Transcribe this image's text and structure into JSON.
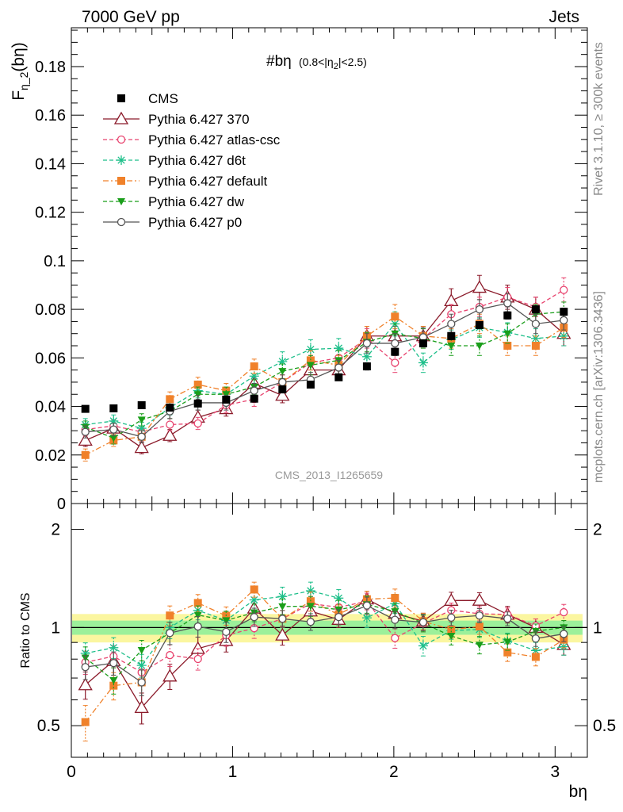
{
  "header": {
    "left": "7000 GeV pp",
    "right": "Jets",
    "plot_title": "#bη",
    "plot_title_cut": "(0.8<|η",
    "plot_title_cut_sub": "2",
    "plot_title_cut_end": "|<2.5)",
    "watermark": "CMS_2013_I1265659",
    "side_rivet": "Rivet 3.1.10, ≥ 300k events",
    "side_mcplots": "mcplots.cern.ch [arXiv:1306.3436]"
  },
  "axes": {
    "y_main_label": "F",
    "y_main_sub": "η_2",
    "y_main_paren": "(bη)",
    "y_ratio_label": "Ratio to CMS",
    "x_label": "bη",
    "y_main_ticks": [
      "0",
      "0.02",
      "0.04",
      "0.06",
      "0.08",
      "0.1",
      "0.12",
      "0.14",
      "0.16",
      "0.18"
    ],
    "y_ratio_ticks": [
      "0.5",
      "1",
      "2"
    ],
    "x_ticks": [
      "0",
      "1",
      "2",
      "3"
    ]
  },
  "chart_data": [
    {
      "type": "scatter",
      "panel": "main",
      "xlabel": "bη",
      "ylabel": "F_η_2(bη)",
      "xlim": [
        0,
        3.2
      ],
      "ylim": [
        0,
        0.196
      ],
      "grid": false,
      "legend_position": "top-left",
      "x": [
        0.087,
        0.262,
        0.436,
        0.611,
        0.785,
        0.96,
        1.134,
        1.309,
        1.484,
        1.658,
        1.833,
        2.007,
        2.182,
        2.356,
        2.531,
        2.705,
        2.88,
        3.054
      ],
      "series": [
        {
          "name": "CMS",
          "color": "#000000",
          "marker": "square",
          "line": "none",
          "values": [
            0.039,
            0.0392,
            0.0405,
            0.0395,
            0.0412,
            0.0428,
            0.0432,
            0.047,
            0.049,
            0.052,
            0.0565,
            0.0625,
            0.066,
            0.069,
            0.0735,
            0.0775,
            0.08,
            0.079
          ],
          "errors": [
            0.001,
            0.001,
            0.001,
            0.001,
            0.001,
            0.001,
            0.001,
            0.001,
            0.001,
            0.001,
            0.0015,
            0.0015,
            0.0015,
            0.0015,
            0.0015,
            0.0015,
            0.0015,
            0.0015
          ]
        },
        {
          "name": "Pythia 6.427 370",
          "color": "#8b1a2a",
          "marker": "open-triangle",
          "line": "solid",
          "values": [
            0.026,
            0.031,
            0.023,
            0.028,
            0.0355,
            0.039,
            0.0495,
            0.0445,
            0.055,
            0.055,
            0.069,
            0.069,
            0.069,
            0.0835,
            0.089,
            0.085,
            0.08,
            0.07
          ],
          "errors": [
            0.0025,
            0.003,
            0.0025,
            0.0025,
            0.003,
            0.003,
            0.003,
            0.003,
            0.003,
            0.003,
            0.004,
            0.004,
            0.004,
            0.005,
            0.005,
            0.005,
            0.005,
            0.005
          ]
        },
        {
          "name": "Pythia 6.427 atlas-csc",
          "color": "#e8446f",
          "marker": "open-circle",
          "line": "dashed",
          "values": [
            0.0305,
            0.032,
            0.0295,
            0.0325,
            0.033,
            0.0405,
            0.043,
            0.05,
            0.058,
            0.06,
            0.068,
            0.058,
            0.068,
            0.078,
            0.081,
            0.085,
            0.081,
            0.088
          ],
          "errors": [
            0.0025,
            0.0025,
            0.0025,
            0.0025,
            0.0025,
            0.003,
            0.003,
            0.003,
            0.003,
            0.003,
            0.004,
            0.004,
            0.004,
            0.004,
            0.004,
            0.004,
            0.004,
            0.005
          ]
        },
        {
          "name": "Pythia 6.427 d6t",
          "color": "#1dbf8a",
          "marker": "star",
          "line": "dashed",
          "values": [
            0.0325,
            0.034,
            0.031,
            0.0395,
            0.0465,
            0.045,
            0.0525,
            0.0585,
            0.0635,
            0.064,
            0.0605,
            0.074,
            0.058,
            0.0675,
            0.0725,
            0.0705,
            0.068,
            0.069
          ],
          "errors": [
            0.0025,
            0.0025,
            0.0025,
            0.003,
            0.003,
            0.003,
            0.003,
            0.004,
            0.004,
            0.004,
            0.004,
            0.005,
            0.004,
            0.004,
            0.004,
            0.004,
            0.004,
            0.004
          ]
        },
        {
          "name": "Pythia 6.427 default",
          "color": "#f0812a",
          "marker": "square",
          "line": "dashdot",
          "values": [
            0.02,
            0.026,
            0.0275,
            0.043,
            0.049,
            0.0465,
            0.0565,
            0.05,
            0.059,
            0.057,
            0.069,
            0.077,
            0.069,
            0.068,
            0.074,
            0.065,
            0.065,
            0.0725
          ],
          "errors": [
            0.0025,
            0.0025,
            0.0025,
            0.003,
            0.003,
            0.003,
            0.003,
            0.003,
            0.004,
            0.004,
            0.004,
            0.005,
            0.004,
            0.004,
            0.004,
            0.004,
            0.004,
            0.004
          ]
        },
        {
          "name": "Pythia 6.427 dw",
          "color": "#1a9e1a",
          "marker": "down-triangle",
          "line": "dashed",
          "values": [
            0.0315,
            0.027,
            0.0345,
            0.038,
            0.045,
            0.045,
            0.048,
            0.0545,
            0.057,
            0.059,
            0.0665,
            0.07,
            0.068,
            0.065,
            0.065,
            0.07,
            0.078,
            0.079
          ],
          "errors": [
            0.0025,
            0.0025,
            0.0025,
            0.003,
            0.003,
            0.003,
            0.003,
            0.003,
            0.004,
            0.004,
            0.004,
            0.004,
            0.004,
            0.004,
            0.004,
            0.004,
            0.004,
            0.004
          ]
        },
        {
          "name": "Pythia 6.427 p0",
          "color": "#555555",
          "marker": "open-circle",
          "line": "solid",
          "values": [
            0.0295,
            0.0305,
            0.0275,
            0.038,
            0.0415,
            0.0415,
            0.0465,
            0.05,
            0.051,
            0.056,
            0.066,
            0.066,
            0.0685,
            0.074,
            0.08,
            0.0825,
            0.074,
            0.0755
          ],
          "errors": [
            0.0025,
            0.0025,
            0.0025,
            0.003,
            0.003,
            0.003,
            0.003,
            0.003,
            0.003,
            0.003,
            0.004,
            0.004,
            0.004,
            0.004,
            0.004,
            0.004,
            0.004,
            0.004
          ]
        }
      ]
    },
    {
      "type": "scatter",
      "panel": "ratio",
      "xlabel": "bη",
      "ylabel": "Ratio to CMS",
      "xlim": [
        0,
        3.2
      ],
      "ylim": [
        0.4,
        2.4
      ],
      "yscale": "log",
      "reference_line": 1,
      "band_inner": 0.05,
      "band_outer": 0.1,
      "series_source": "main"
    }
  ]
}
